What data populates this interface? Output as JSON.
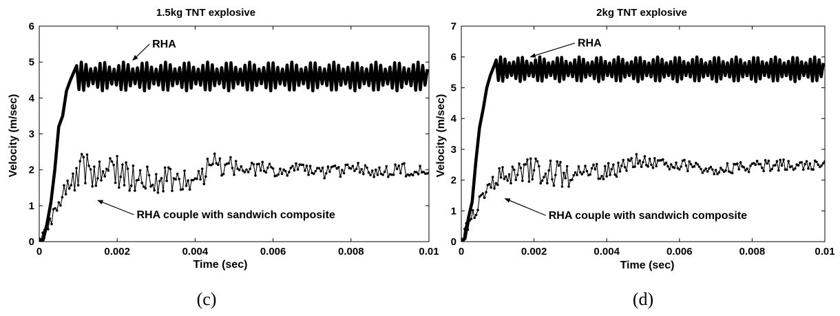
{
  "chart_data": [
    {
      "type": "line",
      "panel_label": "(c)",
      "title": "1.5kg TNT explosive",
      "xlabel": "Time (sec)",
      "ylabel": "Velocity (m/sec)",
      "xlim": [
        0,
        0.01
      ],
      "ylim": [
        0,
        6
      ],
      "x_ticks": [
        0,
        0.002,
        0.004,
        0.006,
        0.008,
        0.01
      ],
      "x_tick_labels": [
        "0",
        "0.002",
        "0.004",
        "0.006",
        "0.008",
        "0.01"
      ],
      "y_ticks": [
        0,
        1,
        2,
        3,
        4,
        5,
        6
      ],
      "y_tick_labels": [
        "0",
        "1",
        "2",
        "3",
        "4",
        "5",
        "6"
      ],
      "grid": false,
      "series": [
        {
          "name": "RHA",
          "style": "thick",
          "rise": [
            [
              0,
              0
            ],
            [
              0.0001,
              0.05
            ],
            [
              0.0002,
              0.5
            ],
            [
              0.0003,
              1.1
            ],
            [
              0.0004,
              2.0
            ],
            [
              0.0005,
              3.2
            ],
            [
              0.0006,
              3.5
            ],
            [
              0.0007,
              4.2
            ],
            [
              0.0008,
              4.5
            ],
            [
              0.0009,
              4.75
            ]
          ],
          "plateau": {
            "from": 0.0009,
            "to": 0.01,
            "mean": 4.6,
            "amplitude": 0.4,
            "period": 0.00012
          }
        },
        {
          "name": "RHA couple with sandwich composite",
          "style": "thin-dotted",
          "rise": [
            [
              0,
              0
            ],
            [
              0.0001,
              0.3
            ],
            [
              0.0002,
              0.5
            ],
            [
              0.0003,
              0.6
            ],
            [
              0.0004,
              0.9
            ],
            [
              0.0005,
              1.1
            ],
            [
              0.0006,
              1.3
            ],
            [
              0.0007,
              1.5
            ],
            [
              0.0008,
              1.7
            ],
            [
              0.0009,
              1.8
            ]
          ],
          "trend": [
            [
              0.0009,
              1.9
            ],
            [
              0.0013,
              2.0
            ],
            [
              0.002,
              1.95
            ],
            [
              0.003,
              1.7
            ],
            [
              0.004,
              1.8
            ],
            [
              0.0045,
              2.1
            ],
            [
              0.005,
              2.05
            ],
            [
              0.006,
              2.0
            ],
            [
              0.007,
              1.95
            ],
            [
              0.008,
              2.0
            ],
            [
              0.009,
              2.0
            ],
            [
              0.01,
              2.0
            ]
          ],
          "noise_amplitude": 0.35,
          "samples": 220
        }
      ],
      "annotations": [
        {
          "text": "RHA",
          "x": 0.0029,
          "y": 5.5,
          "arrow_to": [
            0.0024,
            5.05
          ]
        },
        {
          "text": "RHA couple with sandwich composite",
          "x": 0.0025,
          "y": 0.75,
          "arrow_to": [
            0.0015,
            1.15
          ]
        }
      ]
    },
    {
      "type": "line",
      "panel_label": "(d)",
      "title": "2kg TNT explosive",
      "xlabel": "Time (sec)",
      "ylabel": "Velocity (m/sec)",
      "xlim": [
        0,
        0.01
      ],
      "ylim": [
        0,
        7
      ],
      "x_ticks": [
        0,
        0.002,
        0.004,
        0.006,
        0.008,
        0.01
      ],
      "x_tick_labels": [
        "0",
        "0.002",
        "0.004",
        "0.006",
        "0.008",
        "0.01"
      ],
      "y_ticks": [
        0,
        1,
        2,
        3,
        4,
        5,
        6,
        7
      ],
      "y_tick_labels": [
        "0",
        "1",
        "2",
        "3",
        "4",
        "5",
        "6",
        "7"
      ],
      "grid": false,
      "series": [
        {
          "name": "RHA",
          "style": "thick",
          "rise": [
            [
              0,
              0
            ],
            [
              0.0001,
              0.1
            ],
            [
              0.0002,
              0.8
            ],
            [
              0.0003,
              1.3
            ],
            [
              0.0004,
              2.6
            ],
            [
              0.0005,
              3.7
            ],
            [
              0.0006,
              4.3
            ],
            [
              0.0007,
              5.0
            ],
            [
              0.0008,
              5.4
            ],
            [
              0.0009,
              5.7
            ]
          ],
          "plateau": {
            "from": 0.0009,
            "to": 0.01,
            "mean": 5.6,
            "amplitude": 0.4,
            "period": 0.00012
          }
        },
        {
          "name": "RHA couple with sandwich composite",
          "style": "thin-dotted",
          "rise": [
            [
              0,
              0
            ],
            [
              0.0001,
              0.3
            ],
            [
              0.0002,
              0.6
            ],
            [
              0.0003,
              0.8
            ],
            [
              0.0004,
              1.0
            ],
            [
              0.0005,
              1.3
            ],
            [
              0.0006,
              1.5
            ],
            [
              0.0007,
              1.7
            ],
            [
              0.0008,
              1.9
            ],
            [
              0.0009,
              2.0
            ]
          ],
          "trend": [
            [
              0.0009,
              2.1
            ],
            [
              0.0015,
              2.35
            ],
            [
              0.002,
              2.3
            ],
            [
              0.003,
              2.15
            ],
            [
              0.004,
              2.25
            ],
            [
              0.0045,
              2.5
            ],
            [
              0.005,
              2.6
            ],
            [
              0.006,
              2.5
            ],
            [
              0.007,
              2.35
            ],
            [
              0.008,
              2.45
            ],
            [
              0.009,
              2.5
            ],
            [
              0.01,
              2.5
            ]
          ],
          "noise_amplitude": 0.3,
          "samples": 220
        }
      ],
      "annotations": [
        {
          "text": "RHA",
          "x": 0.0032,
          "y": 6.45,
          "arrow_to": [
            0.0019,
            6.0
          ]
        },
        {
          "text": "RHA couple with sandwich composite",
          "x": 0.0024,
          "y": 0.85,
          "arrow_to": [
            0.0012,
            1.4
          ]
        }
      ]
    }
  ]
}
